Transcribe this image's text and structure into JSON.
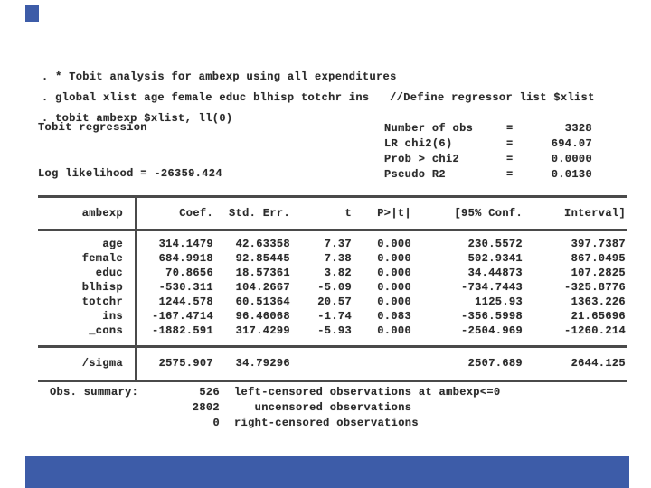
{
  "commands": [
    ". * Tobit analysis for ambexp using all expenditures",
    ". global xlist age female educ blhisp totchr ins   //Define regressor list $xlist",
    ". tobit ambexp $xlist, ll(0)"
  ],
  "header": {
    "title": "Tobit regression",
    "log_likelihood": "Log likelihood = -26359.424",
    "stats": [
      {
        "label": "Number of obs",
        "eq": "=",
        "value": "3328"
      },
      {
        "label": "LR chi2(6)",
        "eq": "=",
        "value": "694.07"
      },
      {
        "label": "Prob > chi2",
        "eq": "=",
        "value": "0.0000"
      },
      {
        "label": "Pseudo R2",
        "eq": "=",
        "value": "0.0130"
      }
    ]
  },
  "table": {
    "depvar": "ambexp",
    "col_coef": "Coef.",
    "col_se": "Std. Err.",
    "col_t": "t",
    "col_p": "P>|t|",
    "col_ci_left": "[95% Conf.",
    "col_ci_right": "Interval]",
    "rows": [
      {
        "var": "age",
        "coef": "314.1479",
        "se": "42.63358",
        "t": "7.37",
        "p": "0.000",
        "lo": "230.5572",
        "hi": "397.7387"
      },
      {
        "var": "female",
        "coef": "684.9918",
        "se": "92.85445",
        "t": "7.38",
        "p": "0.000",
        "lo": "502.9341",
        "hi": "867.0495"
      },
      {
        "var": "educ",
        "coef": "70.8656",
        "se": "18.57361",
        "t": "3.82",
        "p": "0.000",
        "lo": "34.44873",
        "hi": "107.2825"
      },
      {
        "var": "blhisp",
        "coef": "-530.311",
        "se": "104.2667",
        "t": "-5.09",
        "p": "0.000",
        "lo": "-734.7443",
        "hi": "-325.8776"
      },
      {
        "var": "totchr",
        "coef": "1244.578",
        "se": "60.51364",
        "t": "20.57",
        "p": "0.000",
        "lo": "1125.93",
        "hi": "1363.226"
      },
      {
        "var": "ins",
        "coef": "-167.4714",
        "se": "96.46068",
        "t": "-1.74",
        "p": "0.083",
        "lo": "-356.5998",
        "hi": "21.65696"
      },
      {
        "var": "_cons",
        "coef": "-1882.591",
        "se": "317.4299",
        "t": "-5.93",
        "p": "0.000",
        "lo": "-2504.969",
        "hi": "-1260.214"
      }
    ],
    "sigma": {
      "var": "/sigma",
      "coef": "2575.907",
      "se": "34.79296",
      "t": "",
      "p": "",
      "lo": "2507.689",
      "hi": "2644.125"
    }
  },
  "summary": {
    "label": "Obs. summary:",
    "lines": [
      {
        "count": "526",
        "desc": "left-censored observations at ambexp<=0"
      },
      {
        "count": "2802",
        "desc": "   uncensored observations"
      },
      {
        "count": "0",
        "desc": "right-censored observations"
      }
    ]
  }
}
